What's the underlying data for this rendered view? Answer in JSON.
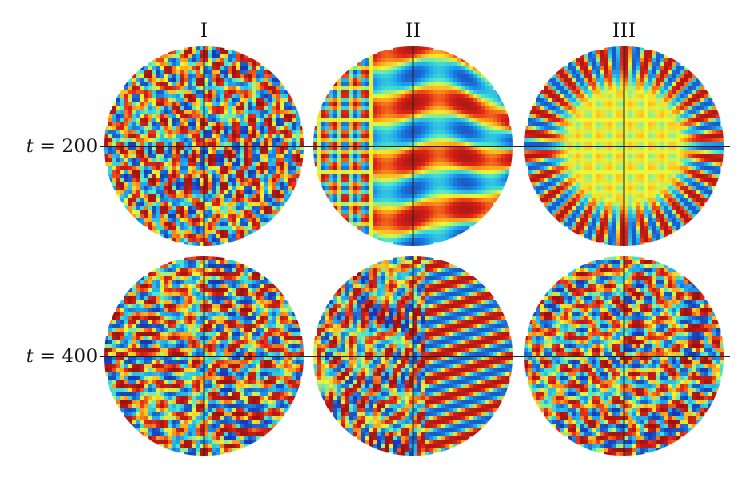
{
  "columns": [
    "I",
    "II",
    "III"
  ],
  "rows": [
    {
      "var": "t",
      "eq": "= 200"
    },
    {
      "var": "t",
      "eq": "= 400"
    }
  ],
  "panels": [
    {
      "name": "sphere-I-t200",
      "pattern": "spots",
      "seed": 11
    },
    {
      "name": "sphere-II-t200",
      "pattern": "bands",
      "seed": 23
    },
    {
      "name": "sphere-III-t200",
      "pattern": "radial",
      "seed": 37
    },
    {
      "name": "sphere-I-t400",
      "pattern": "spots",
      "seed": 41
    },
    {
      "name": "sphere-II-t400",
      "pattern": "mixed",
      "seed": 53
    },
    {
      "name": "sphere-III-t400",
      "pattern": "labyrinth",
      "seed": 67
    }
  ],
  "colors": {
    "colormap": [
      "#1a33b3",
      "#1da1f0",
      "#45e6d0",
      "#f2f533",
      "#ff9a1a",
      "#e0261a",
      "#9a1010"
    ],
    "axis": "#222222"
  }
}
